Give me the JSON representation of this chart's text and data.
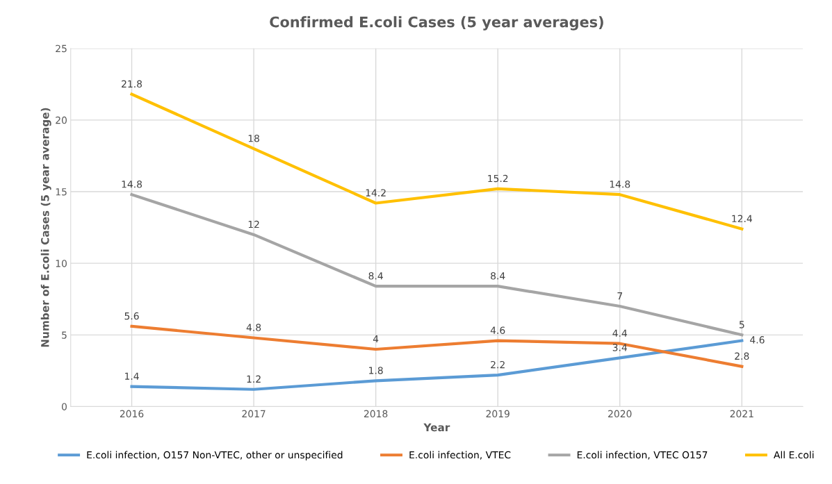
{
  "chart_data": {
    "type": "line",
    "title": "Confirmed E.coli Cases (5 year averages)",
    "xlabel": "Year",
    "ylabel": "Number of E.coli Cases (5 year average)",
    "categories": [
      "2016",
      "2017",
      "2018",
      "2019",
      "2020",
      "2021"
    ],
    "series": [
      {
        "name": "E.coli infection, O157 Non-VTEC, other or unspecified",
        "color": "#5b9bd5",
        "values": [
          1.4,
          1.2,
          1.8,
          2.2,
          3.4,
          4.6
        ]
      },
      {
        "name": "E.coli infection, VTEC",
        "color": "#ed7d31",
        "values": [
          5.6,
          4.8,
          4,
          4.6,
          4.4,
          2.8
        ]
      },
      {
        "name": "E.coli infection, VTEC O157",
        "color": "#a5a5a5",
        "values": [
          14.8,
          12,
          8.4,
          8.4,
          7,
          5
        ]
      },
      {
        "name": "All E.coli",
        "color": "#ffc000",
        "values": [
          21.8,
          18,
          14.2,
          15.2,
          14.8,
          12.4
        ]
      }
    ],
    "ylim": [
      0,
      25
    ],
    "yticks": [
      0,
      5,
      10,
      15,
      20,
      25
    ],
    "grid": true,
    "legend": "bottom",
    "data_labels": true,
    "marker": "none",
    "line_style": "solid"
  }
}
